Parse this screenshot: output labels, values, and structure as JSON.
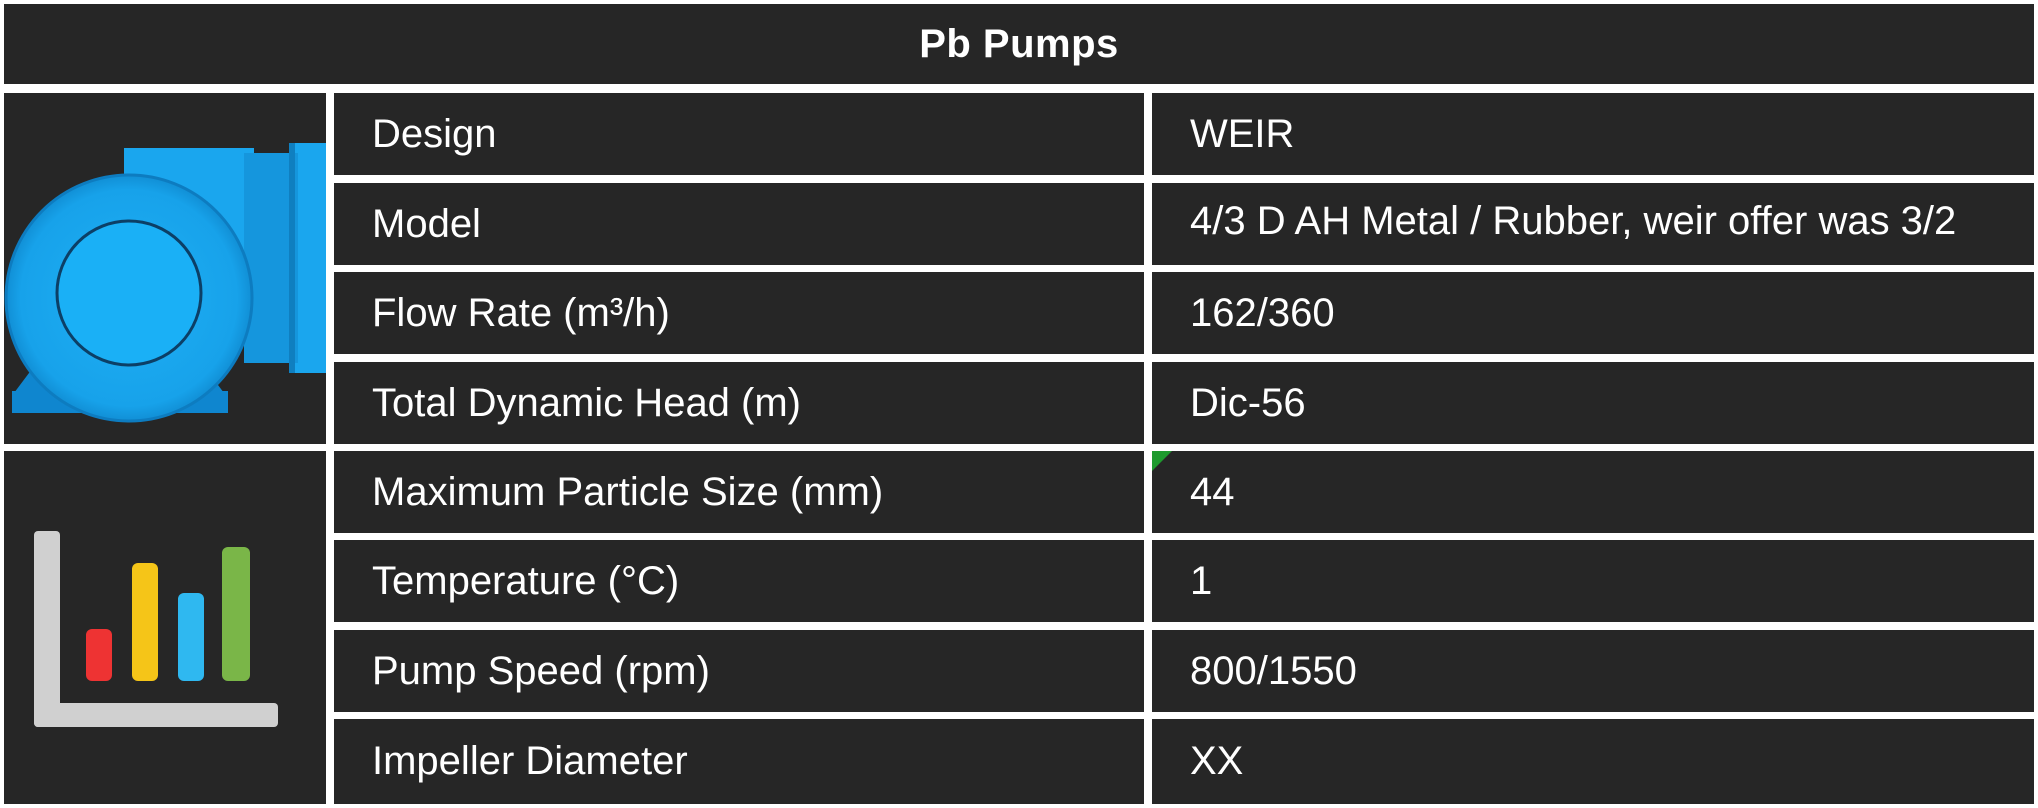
{
  "header": {
    "title": "Pb Pumps"
  },
  "icons": {
    "pump": "pump-icon",
    "chart": "bar-chart-icon"
  },
  "colors": {
    "background": "#262626",
    "grid_lines": "#ffffff",
    "text": "#ffffff",
    "pump_blue": "#1aa6ee",
    "chart_bars": [
      "#ee3333",
      "#f5c518",
      "#2fb8f0",
      "#7ab648"
    ],
    "chart_axis": "#d0d0d0"
  },
  "specs": {
    "rows": [
      {
        "label": "Design",
        "value": "WEIR"
      },
      {
        "label": "Model",
        "value": "4/3 D AH Metal / Rubber, weir offer was 3/2"
      },
      {
        "label": "Flow Rate (m³/h)",
        "value": "162/360"
      },
      {
        "label": "Total Dynamic Head (m)",
        "value": "Dic-56"
      },
      {
        "label": "Maximum Particle Size (mm)",
        "value": "44"
      },
      {
        "label": "Temperature (°C)",
        "value": "1"
      },
      {
        "label": "Pump Speed (rpm)",
        "value": "800/1550"
      },
      {
        "label": "Impeller Diameter",
        "value": "XX"
      }
    ]
  }
}
